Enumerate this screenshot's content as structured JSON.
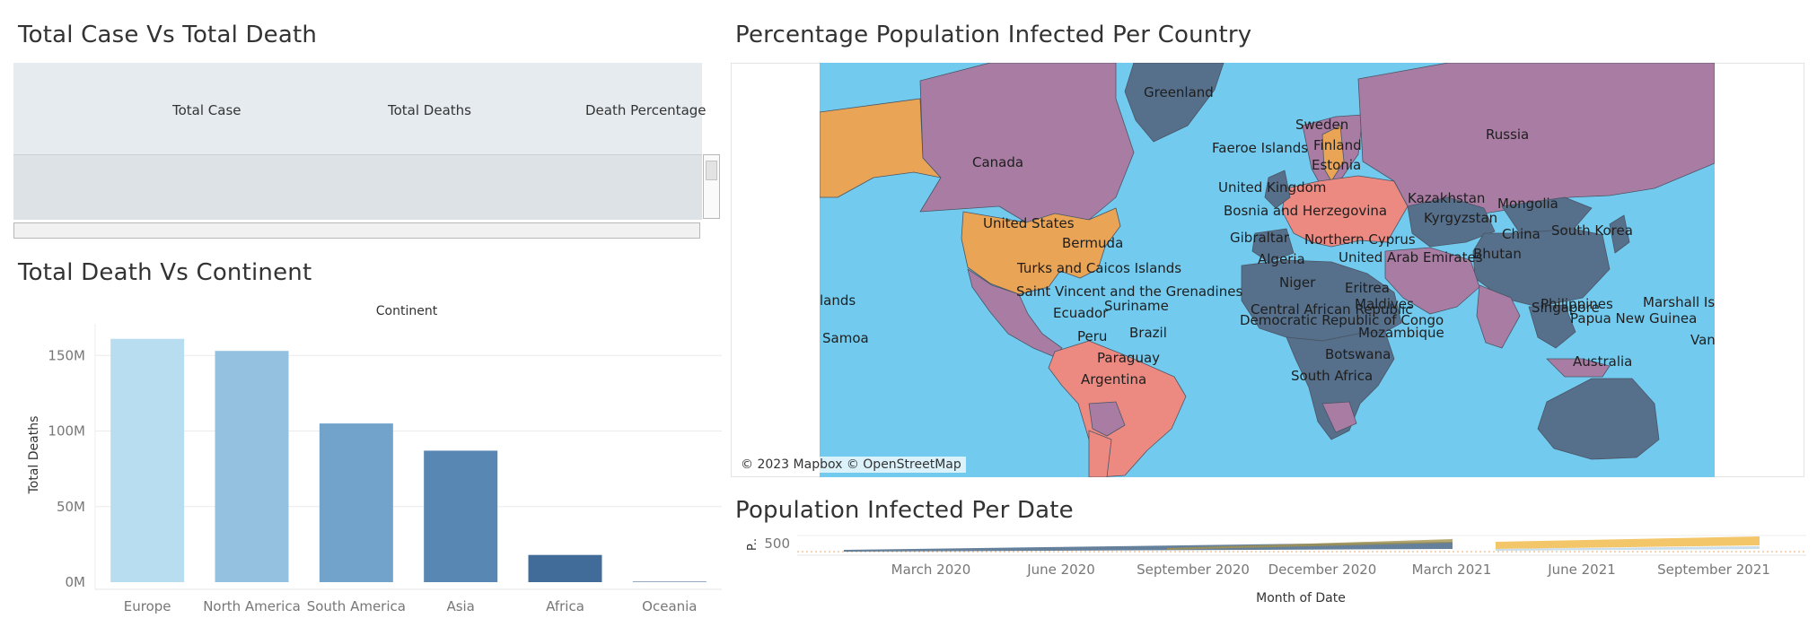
{
  "titles": {
    "case_vs_death": "Total Case Vs Total Death",
    "death_vs_continent": "Total Death Vs Continent",
    "pct_infected": "Percentage Population Infected Per Country",
    "infected_per_date": "Population Infected Per Date"
  },
  "summary_table": {
    "columns": [
      "Total Case",
      "Total Deaths",
      "Death Percentage"
    ]
  },
  "map": {
    "copyright": "© 2023 Mapbox © OpenStreetMap",
    "colors": {
      "ocean": "#72cbef",
      "purple": "#a97ca4",
      "slate": "#566f8a",
      "orange": "#e9a455",
      "pink": "#ec8a82"
    },
    "labels": [
      "Greenland",
      "Russia",
      "Sweden",
      "Finland",
      "Faeroe Islands",
      "Estonia",
      "Canada",
      "United Kingdom",
      "Bosnia and Herzegovina",
      "Kazakhstan",
      "Mongolia",
      "United States",
      "Gibraltar",
      "Kyrgyzstan",
      "Northern Cyprus",
      "China",
      "South Korea",
      "Bermuda",
      "Algeria",
      "Bhutan",
      "United Arab Emirates",
      "Turks and Caicos Islands",
      "Niger",
      "Eritrea",
      "Philippines",
      "Saint Vincent and the Grenadines",
      "lands",
      "Central African Republic",
      "Maldives",
      "Marshall Is",
      "Suriname",
      "Ecuador",
      "Democratic Republic of Congo",
      "Singapore",
      "Papua New Guinea",
      "Samoa",
      "Peru",
      "Brazil",
      "Mozambique",
      "Vanuatu",
      "Botswana",
      "Paraguay",
      "Australia",
      "South Africa",
      "Argentina"
    ]
  },
  "chart_data": [
    {
      "type": "bar",
      "header": "Continent",
      "ylabel": "Total Deaths",
      "categories": [
        "Europe",
        "North America",
        "South America",
        "Asia",
        "Africa",
        "Oceania"
      ],
      "values": [
        161000000,
        153000000,
        105000000,
        87000000,
        18000000,
        300000
      ],
      "ylim": [
        0,
        165000000
      ],
      "y_ticks": [
        0,
        50000000,
        100000000,
        150000000
      ],
      "y_tick_labels": [
        "0M",
        "50M",
        "100M",
        "150M"
      ],
      "colors": [
        "#b8dcf0",
        "#94c1e0",
        "#72a4cb",
        "#5887b3",
        "#416b98",
        "#2d5380"
      ],
      "grid": true
    },
    {
      "type": "line",
      "xlabel": "Month of Date",
      "ylabel": "P..",
      "y_ticks": [
        500
      ],
      "x_tick_labels": [
        "March 2020",
        "June 2020",
        "September 2020",
        "December 2020",
        "March 2021",
        "June 2021",
        "September 2021"
      ]
    }
  ]
}
